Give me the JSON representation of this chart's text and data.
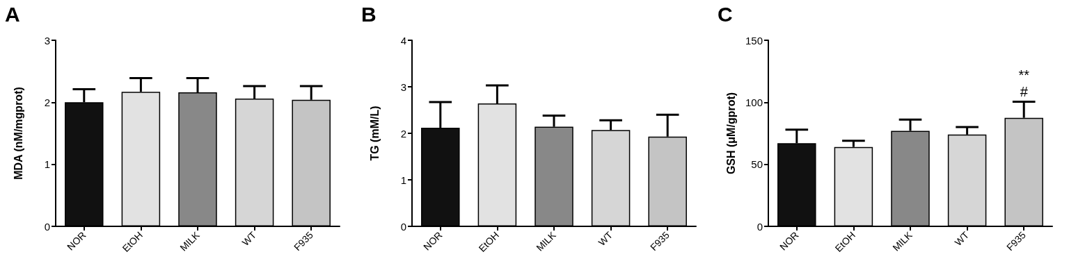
{
  "chart_data": [
    {
      "type": "bar",
      "title": "A",
      "ylabel": "MDA (nM/mgprot)",
      "categories": [
        "NOR",
        "EtOH",
        "MILK",
        "WT",
        "F935"
      ],
      "values": [
        2.0,
        2.17,
        2.16,
        2.06,
        2.04
      ],
      "errors": [
        [
          2.0,
          2.21
        ],
        [
          2.17,
          2.39
        ],
        [
          2.16,
          2.39
        ],
        [
          2.06,
          2.26
        ],
        [
          2.04,
          2.26
        ]
      ],
      "colors": [
        "#111111",
        "#e2e2e2",
        "#888888",
        "#d6d6d6",
        "#c4c4c4"
      ],
      "ylim": [
        0,
        3
      ],
      "yticks": [
        0,
        1,
        2,
        3
      ],
      "grid": false
    },
    {
      "type": "bar",
      "title": "B",
      "ylabel": "TG (mM/L)",
      "categories": [
        "NOR",
        "EtOH",
        "MILK",
        "WT",
        "F935"
      ],
      "values": [
        2.12,
        2.64,
        2.14,
        2.07,
        1.93
      ],
      "errors": [
        [
          2.12,
          2.67
        ],
        [
          2.64,
          3.03
        ],
        [
          2.14,
          2.38
        ],
        [
          2.07,
          2.28
        ],
        [
          1.93,
          2.4
        ]
      ],
      "colors": [
        "#111111",
        "#e2e2e2",
        "#888888",
        "#d6d6d6",
        "#c4c4c4"
      ],
      "ylim": [
        0,
        4
      ],
      "yticks": [
        0,
        1,
        2,
        3,
        4
      ],
      "grid": false
    },
    {
      "type": "bar",
      "title": "C",
      "ylabel": "GSH (μM/gprot)",
      "categories": [
        "NOR",
        "EtOH",
        "MILK",
        "WT",
        "F935"
      ],
      "values": [
        67,
        64,
        77,
        74,
        87.5
      ],
      "errors": [
        [
          67,
          78
        ],
        [
          64,
          69
        ],
        [
          77,
          86
        ],
        [
          74,
          80
        ],
        [
          87.5,
          100.5
        ]
      ],
      "colors": [
        "#111111",
        "#e2e2e2",
        "#888888",
        "#d6d6d6",
        "#c4c4c4"
      ],
      "ylim": [
        0,
        150
      ],
      "yticks": [
        0,
        50,
        100,
        150
      ],
      "grid": false,
      "annotations": [
        "**",
        "#"
      ]
    }
  ]
}
